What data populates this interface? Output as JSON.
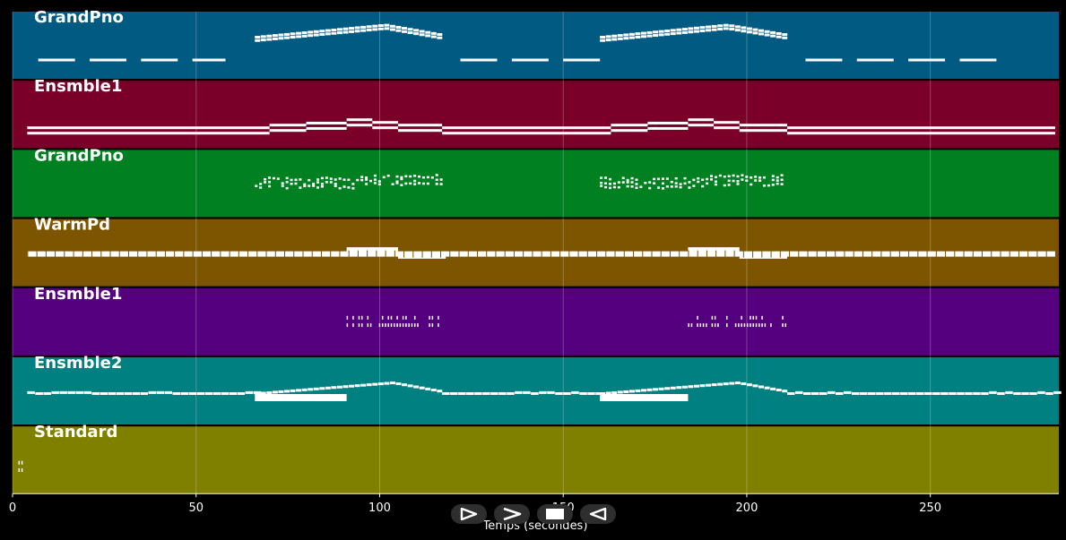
{
  "player": {
    "xlabel": "Temps (secondes)",
    "controls": [
      {
        "name": "play-icon"
      },
      {
        "name": "forward-icon"
      },
      {
        "name": "stop-icon"
      },
      {
        "name": "rewind-icon"
      }
    ]
  },
  "chart_data": {
    "type": "piano-roll",
    "xlabel": "Temps (secondes)",
    "xlim": [
      0,
      285
    ],
    "xticks": [
      0,
      50,
      100,
      150,
      200,
      250
    ],
    "grid": true,
    "tracks": [
      {
        "name": "GrandPno",
        "color": "#005a82",
        "segments": [
          {
            "style": "dashes",
            "x0": 7,
            "x1": 58,
            "y": 0.28,
            "dash": 10,
            "gap": 4
          },
          {
            "style": "arc",
            "x0": 66,
            "x1": 117,
            "base": 0.62,
            "peak": 0.8,
            "peakAt": 101,
            "lines": 2,
            "sep": 0.05
          },
          {
            "style": "dashes",
            "x0": 122,
            "x1": 160,
            "y": 0.28,
            "dash": 10,
            "gap": 4
          },
          {
            "style": "arc",
            "x0": 160,
            "x1": 211,
            "base": 0.62,
            "peak": 0.8,
            "peakAt": 194,
            "lines": 2,
            "sep": 0.05
          },
          {
            "style": "dashes",
            "x0": 216,
            "x1": 268,
            "y": 0.28,
            "dash": 10,
            "gap": 4
          }
        ]
      },
      {
        "name": "Ensmble1",
        "color": "#7a0029",
        "segments": [
          {
            "style": "steps",
            "x0": 4,
            "x1": 284,
            "base": 0.22,
            "lines": 2,
            "sep": 0.08,
            "bumps": [
              [
                70,
                80,
                0.04
              ],
              [
                80,
                91,
                0.07
              ],
              [
                91,
                98,
                0.12
              ],
              [
                98,
                105,
                0.08
              ],
              [
                105,
                117,
                0.04
              ],
              [
                163,
                173,
                0.04
              ],
              [
                173,
                184,
                0.07
              ],
              [
                184,
                191,
                0.12
              ],
              [
                191,
                198,
                0.08
              ],
              [
                198,
                211,
                0.04
              ]
            ]
          }
        ]
      },
      {
        "name": "GrandPno",
        "color": "#008020",
        "segments": [
          {
            "style": "chords",
            "x0": 66,
            "x1": 117,
            "base": 0.45,
            "lines": 3,
            "sep": 0.06
          },
          {
            "style": "chords",
            "x0": 160,
            "x1": 211,
            "base": 0.45,
            "lines": 3,
            "sep": 0.06
          }
        ]
      },
      {
        "name": "WarmPd",
        "color": "#7d5500",
        "segments": [
          {
            "style": "pad",
            "x0": 4,
            "x1": 284,
            "base": 0.48,
            "bumps": [
              [
                91,
                105,
                0.06
              ],
              [
                105,
                118,
                -0.03
              ],
              [
                184,
                198,
                0.06
              ],
              [
                198,
                211,
                -0.03
              ]
            ]
          }
        ]
      },
      {
        "name": "Ensmble1",
        "color": "#55007f",
        "segments": [
          {
            "style": "ticks",
            "x0": 91,
            "x1": 117,
            "base": 0.45
          },
          {
            "style": "ticks",
            "x0": 184,
            "x1": 211,
            "base": 0.45
          }
        ]
      },
      {
        "name": "Ensmble2",
        "color": "#008080",
        "segments": [
          {
            "style": "melody",
            "x0": 4,
            "x1": 66,
            "base": 0.46
          },
          {
            "style": "block",
            "x0": 66,
            "x1": 91,
            "base": 0.4
          },
          {
            "style": "arc",
            "x0": 66,
            "x1": 117,
            "base": 0.46,
            "peak": 0.62,
            "peakAt": 103,
            "lines": 1,
            "sep": 0
          },
          {
            "style": "melody",
            "x0": 117,
            "x1": 160,
            "base": 0.46
          },
          {
            "style": "block",
            "x0": 160,
            "x1": 184,
            "base": 0.4
          },
          {
            "style": "arc",
            "x0": 160,
            "x1": 211,
            "base": 0.46,
            "peak": 0.62,
            "peakAt": 197,
            "lines": 1,
            "sep": 0
          },
          {
            "style": "melody",
            "x0": 211,
            "x1": 284,
            "base": 0.46
          }
        ]
      },
      {
        "name": "Standard",
        "color": "#7f7f00",
        "segments": [
          {
            "style": "ticks",
            "x0": 0,
            "x1": 3,
            "base": 0.35
          }
        ]
      }
    ]
  }
}
